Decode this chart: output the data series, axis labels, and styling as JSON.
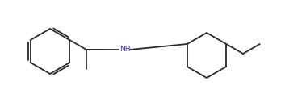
{
  "background_color": "#ffffff",
  "line_color": "#2a2a2a",
  "nh_color": "#3333aa",
  "line_width": 1.3,
  "fig_width": 3.53,
  "fig_height": 1.26,
  "dpi": 100
}
